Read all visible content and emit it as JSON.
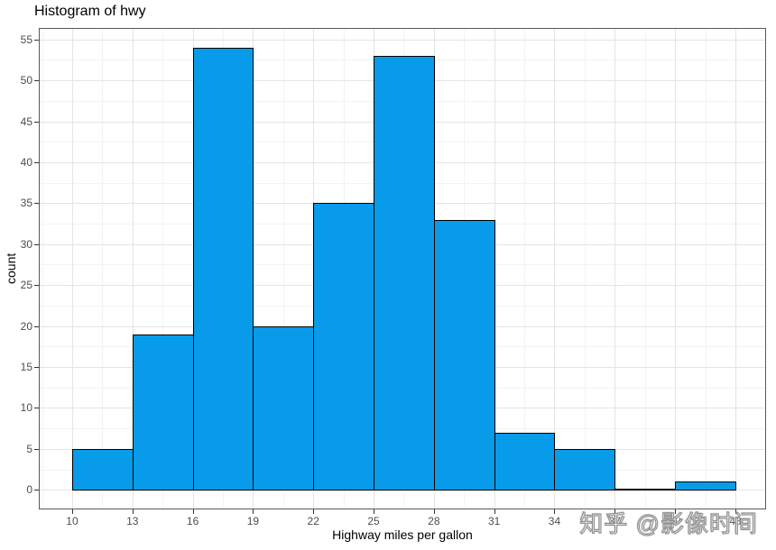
{
  "figure": {
    "watermark": "知乎 @影像时间"
  },
  "chart_data": {
    "type": "bar",
    "subtype": "histogram",
    "title": "Histogram of hwy",
    "xlabel": "Highway miles per gallon",
    "ylabel": "count",
    "bin_edges": [
      10,
      13,
      16,
      19,
      22,
      25,
      28,
      31,
      34,
      37,
      40,
      43
    ],
    "counts": [
      5,
      19,
      54,
      20,
      35,
      53,
      33,
      7,
      5,
      0,
      1
    ],
    "x_ticks": [
      10,
      13,
      16,
      19,
      22,
      25,
      28,
      31,
      34,
      37,
      40,
      43
    ],
    "y_ticks": [
      0,
      5,
      10,
      15,
      20,
      25,
      30,
      35,
      40,
      45,
      50,
      55
    ],
    "xlim": [
      8.34,
      44.53
    ],
    "ylim": [
      -2.4,
      56.4
    ],
    "grid": {
      "major": true,
      "minor": true
    },
    "legend": "none",
    "colors": {
      "bar_fill": "#079BE9",
      "bar_stroke": "#000000",
      "grid_major": "#E4E4E4",
      "grid_minor": "#F3F3F3",
      "panel_border": "#595959",
      "panel_bg": "#FFFFFF",
      "tick": "#333333",
      "tick_label": "#4D4D4D",
      "text": "#000000"
    }
  }
}
